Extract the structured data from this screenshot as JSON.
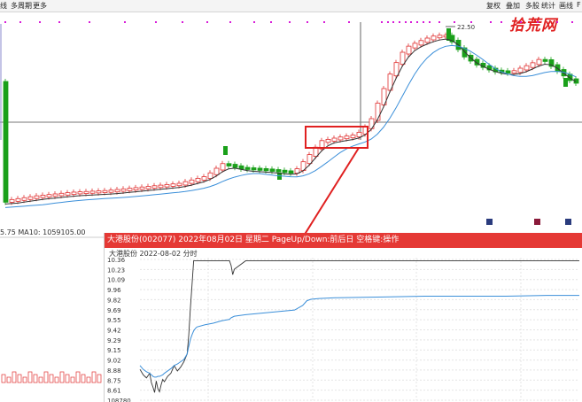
{
  "toolbar": {
    "left_items": [
      "线",
      "多周期",
      "更多"
    ],
    "right_items": [
      "复权",
      "叠加",
      "多股",
      "统计",
      "画线",
      "F"
    ]
  },
  "watermark": "拾荒网",
  "main_chart": {
    "peak_label": "22.50",
    "ma_text": "5.75  MA10: 1059105.00",
    "colors": {
      "up": "#e03030",
      "down": "#1aa01a",
      "ma5": "#333333",
      "ma10": "#3b8fd9",
      "highlight": "#e02020",
      "magenta": "#d81bd8"
    }
  },
  "popup": {
    "title": "大港股份(002077) 2022年08月02日 星期二 PageUp/Down:前后日 空格键:操作",
    "subtitle": "大港股份   2022-08-02 分时"
  },
  "chart_data": {
    "type": "line",
    "title": "大港股份 2022-08-02 分时",
    "y_ticks": [
      "10.36",
      "10.23",
      "10.09",
      "9.96",
      "9.82",
      "9.69",
      "9.55",
      "9.42",
      "9.29",
      "9.15",
      "9.02",
      "8.88",
      "8.75",
      "8.61",
      "108780"
    ],
    "ylim": [
      8.55,
      10.4
    ],
    "x": [
      0,
      4,
      8,
      12,
      14,
      16,
      18,
      20,
      22,
      24,
      26,
      28,
      30,
      34,
      38,
      42,
      46,
      50,
      54,
      58,
      60,
      62,
      64,
      66,
      68,
      70,
      80,
      90,
      100,
      110,
      112,
      114,
      116,
      130,
      150,
      170,
      190,
      200,
      205,
      210,
      220,
      240,
      300,
      350,
      400,
      450,
      500,
      540
    ],
    "series": [
      {
        "values": [
          8.95,
          8.88,
          8.84,
          8.9,
          8.78,
          8.72,
          8.65,
          8.8,
          8.7,
          8.66,
          8.75,
          8.82,
          8.79,
          8.86,
          8.9,
          9.0,
          8.93,
          8.98,
          9.05,
          9.15,
          9.4,
          9.75,
          10.05,
          10.36,
          10.36,
          10.36,
          10.36,
          10.36,
          10.36,
          10.36,
          10.3,
          10.18,
          10.25,
          10.36,
          10.36,
          10.36,
          10.36,
          10.36,
          10.36,
          10.36,
          10.36,
          10.36,
          10.36,
          10.36,
          10.36,
          10.36,
          10.36,
          10.36
        ]
      },
      {
        "values": [
          9.0,
          8.95,
          8.92,
          8.9,
          8.88,
          8.86,
          8.85,
          8.85,
          8.86,
          8.86,
          8.87,
          8.88,
          8.9,
          8.93,
          8.96,
          9.0,
          9.02,
          9.05,
          9.08,
          9.15,
          9.25,
          9.34,
          9.4,
          9.45,
          9.48,
          9.5,
          9.53,
          9.55,
          9.58,
          9.6,
          9.62,
          9.63,
          9.64,
          9.66,
          9.68,
          9.7,
          9.72,
          9.78,
          9.84,
          9.86,
          9.87,
          9.88,
          9.89,
          9.9,
          9.9,
          9.9,
          9.91,
          9.91
        ]
      }
    ]
  }
}
